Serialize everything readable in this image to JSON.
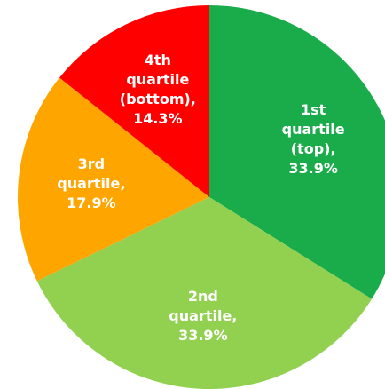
{
  "chart_data": {
    "type": "pie",
    "categories": [
      "1st quartile (top),",
      "2nd quartile,",
      "3rd quartile,",
      "4th quartile (bottom),"
    ],
    "values": [
      33.9,
      33.9,
      17.9,
      14.3
    ],
    "value_labels": [
      "33.9%",
      "33.9%",
      "17.9%",
      "14.3%"
    ],
    "colors": [
      "#1aab4b",
      "#92d050",
      "#ffa500",
      "#ff0000"
    ]
  }
}
